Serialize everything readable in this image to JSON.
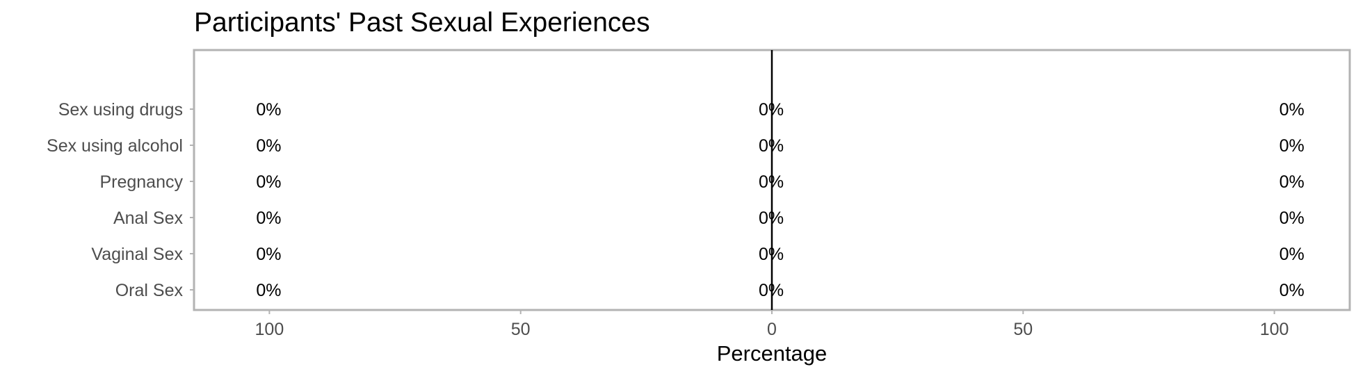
{
  "chart_data": {
    "type": "bar",
    "orientation": "horizontal-diverging",
    "title": "Participants' Past Sexual Experiences",
    "xlabel": "Percentage",
    "ylabel": "",
    "categories": [
      "Oral Sex",
      "Vaginal Sex",
      "Anal Sex",
      "Pregnancy",
      "Sex using alcohol",
      "Sex using drugs"
    ],
    "xlim": [
      -115,
      115
    ],
    "x_ticks": [
      -100,
      -50,
      0,
      50,
      100
    ],
    "x_tick_labels": [
      "100",
      "50",
      "0",
      "50",
      "100"
    ],
    "series": [
      {
        "values": [
          0,
          0,
          0,
          0,
          0,
          0
        ],
        "labels": [
          "0%",
          "0%",
          "0%",
          "0%",
          "0%",
          "0%"
        ],
        "label_position": "left"
      },
      {
        "values": [
          0,
          0,
          0,
          0,
          0,
          0
        ],
        "labels": [
          "0%",
          "0%",
          "0%",
          "0%",
          "0%",
          "0%"
        ],
        "label_position": "center"
      },
      {
        "values": [
          0,
          0,
          0,
          0,
          0,
          0
        ],
        "labels": [
          "0%",
          "0%",
          "0%",
          "0%",
          "0%",
          "0%"
        ],
        "label_position": "right"
      }
    ],
    "grid": true,
    "zero_line": true,
    "legend": "none",
    "colors": {
      "panel_border": "#b3b3b3",
      "grid": "#ffffff",
      "zero_line": "#000000",
      "label_text": "#4d4d4d"
    }
  }
}
